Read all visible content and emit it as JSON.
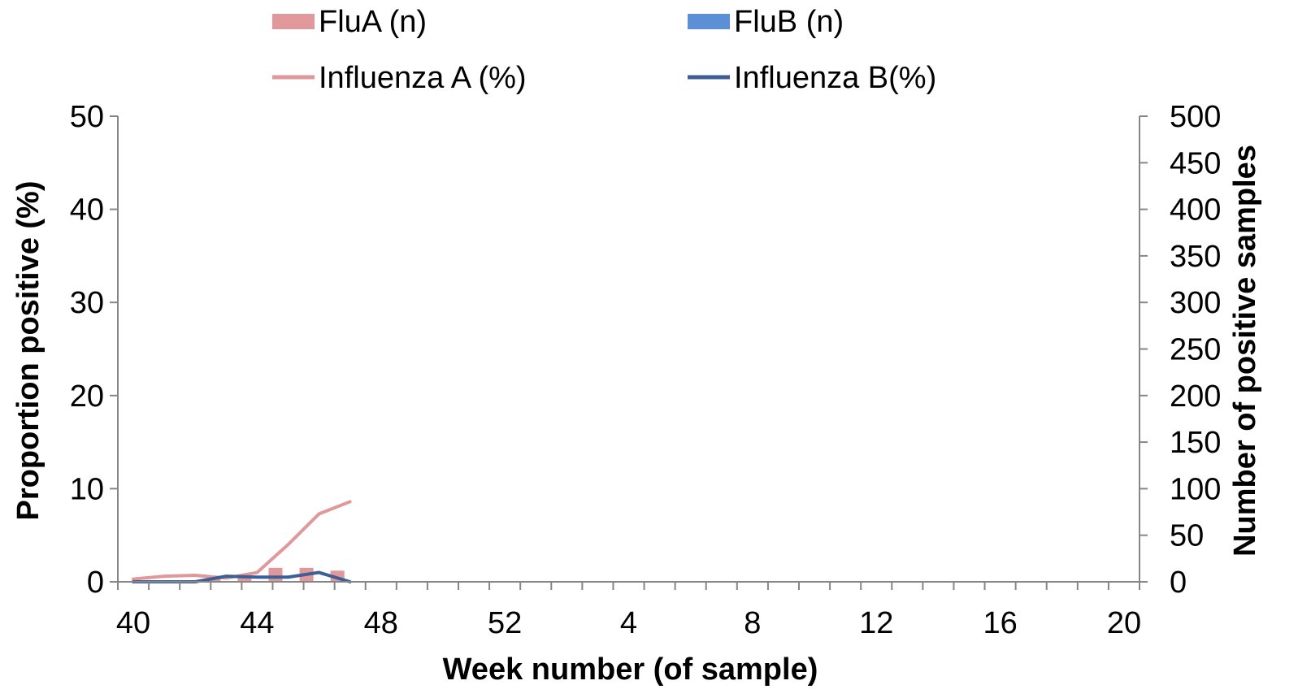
{
  "chart_data": {
    "type": "bar",
    "legend": [
      {
        "key": "flua_n",
        "label": "FluA (n)",
        "kind": "bar",
        "color": "#e0989a"
      },
      {
        "key": "flub_n",
        "label": "FluB (n)",
        "kind": "bar",
        "color": "#5b8fd6"
      },
      {
        "key": "flua_pct",
        "label": "Influenza A (%)",
        "kind": "line",
        "color": "#e0989a"
      },
      {
        "key": "flub_pct",
        "label": "Influenza B(%)",
        "kind": "line",
        "color": "#3b5f96"
      }
    ],
    "legend_position": "top",
    "x": {
      "label": "Week number (of sample)",
      "categories": [
        "40",
        "41",
        "42",
        "43",
        "44",
        "45",
        "46",
        "47",
        "48",
        "49",
        "50",
        "51",
        "52",
        "1",
        "2",
        "3",
        "4",
        "5",
        "6",
        "7",
        "8",
        "9",
        "10",
        "11",
        "12",
        "13",
        "14",
        "15",
        "16",
        "17",
        "18",
        "19",
        "20"
      ],
      "tick_labels": [
        "40",
        "44",
        "48",
        "52",
        "4",
        "8",
        "12",
        "16",
        "20"
      ]
    },
    "y_left": {
      "label": "Proportion positive (%)",
      "range": [
        0,
        50
      ],
      "ticks": [
        "0",
        "10",
        "20",
        "30",
        "40",
        "50"
      ]
    },
    "y_right": {
      "label": "Number of positive samples",
      "range": [
        0,
        500
      ],
      "ticks": [
        "0",
        "50",
        "100",
        "150",
        "200",
        "250",
        "300",
        "350",
        "400",
        "450",
        "500"
      ]
    },
    "grid": false,
    "bar_series": [
      {
        "key": "flua_n",
        "axis": "right",
        "values": [
          0,
          0,
          0,
          4,
          5,
          15,
          15,
          12
        ]
      },
      {
        "key": "flub_n",
        "axis": "right",
        "values": [
          0,
          0,
          0,
          0,
          0,
          0,
          0,
          0
        ]
      }
    ],
    "line_series": [
      {
        "key": "flua_pct",
        "axis": "left",
        "values": [
          0.3,
          0.6,
          0.7,
          0.4,
          1.0,
          4.0,
          7.3,
          8.6
        ]
      },
      {
        "key": "flub_pct",
        "axis": "left",
        "values": [
          0,
          0,
          0,
          0.6,
          0.5,
          0.5,
          1.0,
          0
        ]
      }
    ]
  }
}
